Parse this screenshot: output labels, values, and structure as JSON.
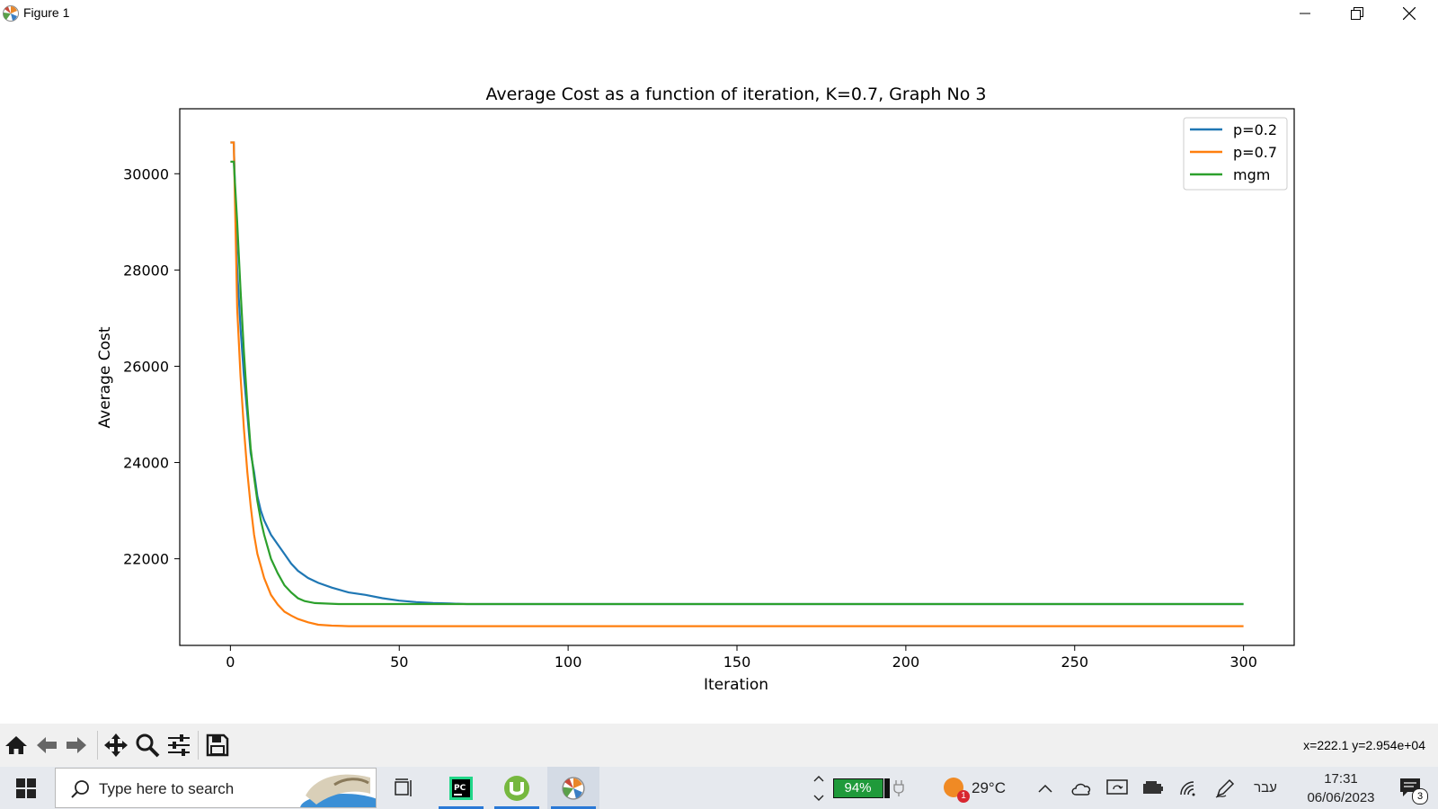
{
  "window": {
    "title": "Figure 1"
  },
  "chart_data": {
    "type": "line",
    "title": "Average Cost as a function of iteration, K=0.7, Graph No 3",
    "xlabel": "Iteration",
    "ylabel": "Average Cost",
    "xlim": [
      -15,
      315
    ],
    "ylim": [
      20200,
      31350
    ],
    "xticks": [
      0,
      50,
      100,
      150,
      200,
      250,
      300
    ],
    "yticks": [
      22000,
      24000,
      26000,
      28000,
      30000
    ],
    "legend_position": "top-right",
    "grid": false,
    "series": [
      {
        "name": "p=0.2",
        "color": "#1f77b4",
        "x": [
          0,
          1,
          2,
          3,
          4,
          5,
          6,
          7,
          8,
          9,
          10,
          12,
          14,
          16,
          18,
          20,
          23,
          26,
          30,
          35,
          40,
          45,
          50,
          55,
          60,
          65,
          70,
          100,
          150,
          200,
          250,
          300
        ],
        "y": [
          30650,
          30650,
          28000,
          26800,
          25800,
          25000,
          24200,
          23800,
          23300,
          23000,
          22800,
          22500,
          22300,
          22100,
          21900,
          21750,
          21600,
          21500,
          21400,
          21300,
          21250,
          21180,
          21130,
          21100,
          21080,
          21070,
          21060,
          21060,
          21060,
          21060,
          21060,
          21060
        ]
      },
      {
        "name": "p=0.7",
        "color": "#ff7f0e",
        "x": [
          0,
          1,
          2,
          3,
          4,
          5,
          6,
          7,
          8,
          9,
          10,
          12,
          14,
          16,
          18,
          20,
          23,
          26,
          30,
          35,
          40,
          50,
          100,
          150,
          200,
          250,
          300
        ],
        "y": [
          30650,
          30650,
          27200,
          25800,
          24700,
          23800,
          23100,
          22500,
          22100,
          21850,
          21600,
          21250,
          21050,
          20900,
          20820,
          20750,
          20680,
          20630,
          20610,
          20600,
          20600,
          20600,
          20600,
          20600,
          20600,
          20600,
          20600
        ]
      },
      {
        "name": "mgm",
        "color": "#2ca02c",
        "x": [
          0,
          1,
          2,
          3,
          4,
          5,
          6,
          7,
          8,
          9,
          10,
          12,
          14,
          16,
          18,
          20,
          22,
          25,
          28,
          32,
          40,
          60,
          100,
          150,
          200,
          250,
          300
        ],
        "y": [
          30250,
          30250,
          29000,
          27600,
          26300,
          25200,
          24300,
          23700,
          23200,
          22800,
          22500,
          22000,
          21700,
          21450,
          21300,
          21180,
          21120,
          21080,
          21070,
          21060,
          21060,
          21060,
          21060,
          21060,
          21060,
          21060,
          21060
        ]
      }
    ]
  },
  "toolbar": {
    "coords": "x=222.1 y=2.954e+04"
  },
  "taskbar": {
    "search_placeholder": "Type here to search",
    "battery": "94%",
    "weather_temp": "29°C",
    "weather_badge": "1",
    "language": "עבר",
    "time": "17:31",
    "date": "06/06/2023",
    "notifications": "3"
  }
}
